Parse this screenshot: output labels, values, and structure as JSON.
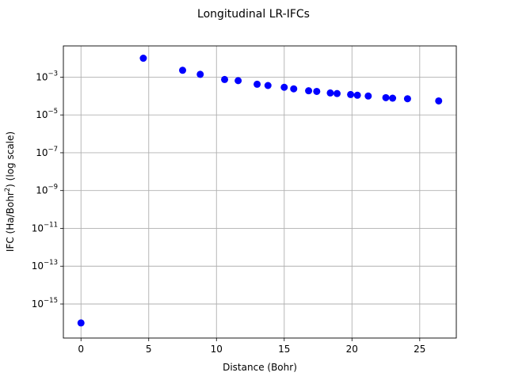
{
  "chart_data": {
    "type": "scatter",
    "title": "Longitudinal LR-IFCs",
    "xlabel": "Distance (Bohr)",
    "ylabel": {
      "prefix": "IFC (Ha/Bohr",
      "sup": "2",
      "suffix": ") (log scale)"
    },
    "xlim": [
      -1.3,
      27.7
    ],
    "ylim_log10": [
      -16.8,
      -1.35
    ],
    "yscale": "log",
    "grid": true,
    "x_ticks": [
      0,
      5,
      10,
      15,
      20,
      25
    ],
    "x_tick_labels": [
      "0",
      "5",
      "10",
      "15",
      "20",
      "25"
    ],
    "y_ticks_log10": [
      -15,
      -13,
      -11,
      -9,
      -7,
      -5,
      -3
    ],
    "y_tick_labels": [
      {
        "base": "10",
        "exp": "−15"
      },
      {
        "base": "10",
        "exp": "−13"
      },
      {
        "base": "10",
        "exp": "−11"
      },
      {
        "base": "10",
        "exp": "−9"
      },
      {
        "base": "10",
        "exp": "−7"
      },
      {
        "base": "10",
        "exp": "−5"
      },
      {
        "base": "10",
        "exp": "−3"
      }
    ],
    "marker_color": "#0000ff",
    "points": [
      {
        "x": 0.0,
        "y": 1e-16
      },
      {
        "x": 4.6,
        "y": 0.01
      },
      {
        "x": 7.5,
        "y": 0.0023
      },
      {
        "x": 8.8,
        "y": 0.0014
      },
      {
        "x": 10.6,
        "y": 0.00075
      },
      {
        "x": 11.6,
        "y": 0.00065
      },
      {
        "x": 13.0,
        "y": 0.00042
      },
      {
        "x": 13.8,
        "y": 0.00036
      },
      {
        "x": 15.0,
        "y": 0.00029
      },
      {
        "x": 15.7,
        "y": 0.00024
      },
      {
        "x": 16.8,
        "y": 0.00019
      },
      {
        "x": 17.4,
        "y": 0.000175
      },
      {
        "x": 18.4,
        "y": 0.000145
      },
      {
        "x": 18.9,
        "y": 0.000135
      },
      {
        "x": 19.9,
        "y": 0.00012
      },
      {
        "x": 20.4,
        "y": 0.00011
      },
      {
        "x": 21.2,
        "y": 0.0001
      },
      {
        "x": 22.5,
        "y": 8.2e-05
      },
      {
        "x": 23.0,
        "y": 7.7e-05
      },
      {
        "x": 24.1,
        "y": 7.2e-05
      },
      {
        "x": 26.4,
        "y": 5.5e-05
      }
    ]
  }
}
